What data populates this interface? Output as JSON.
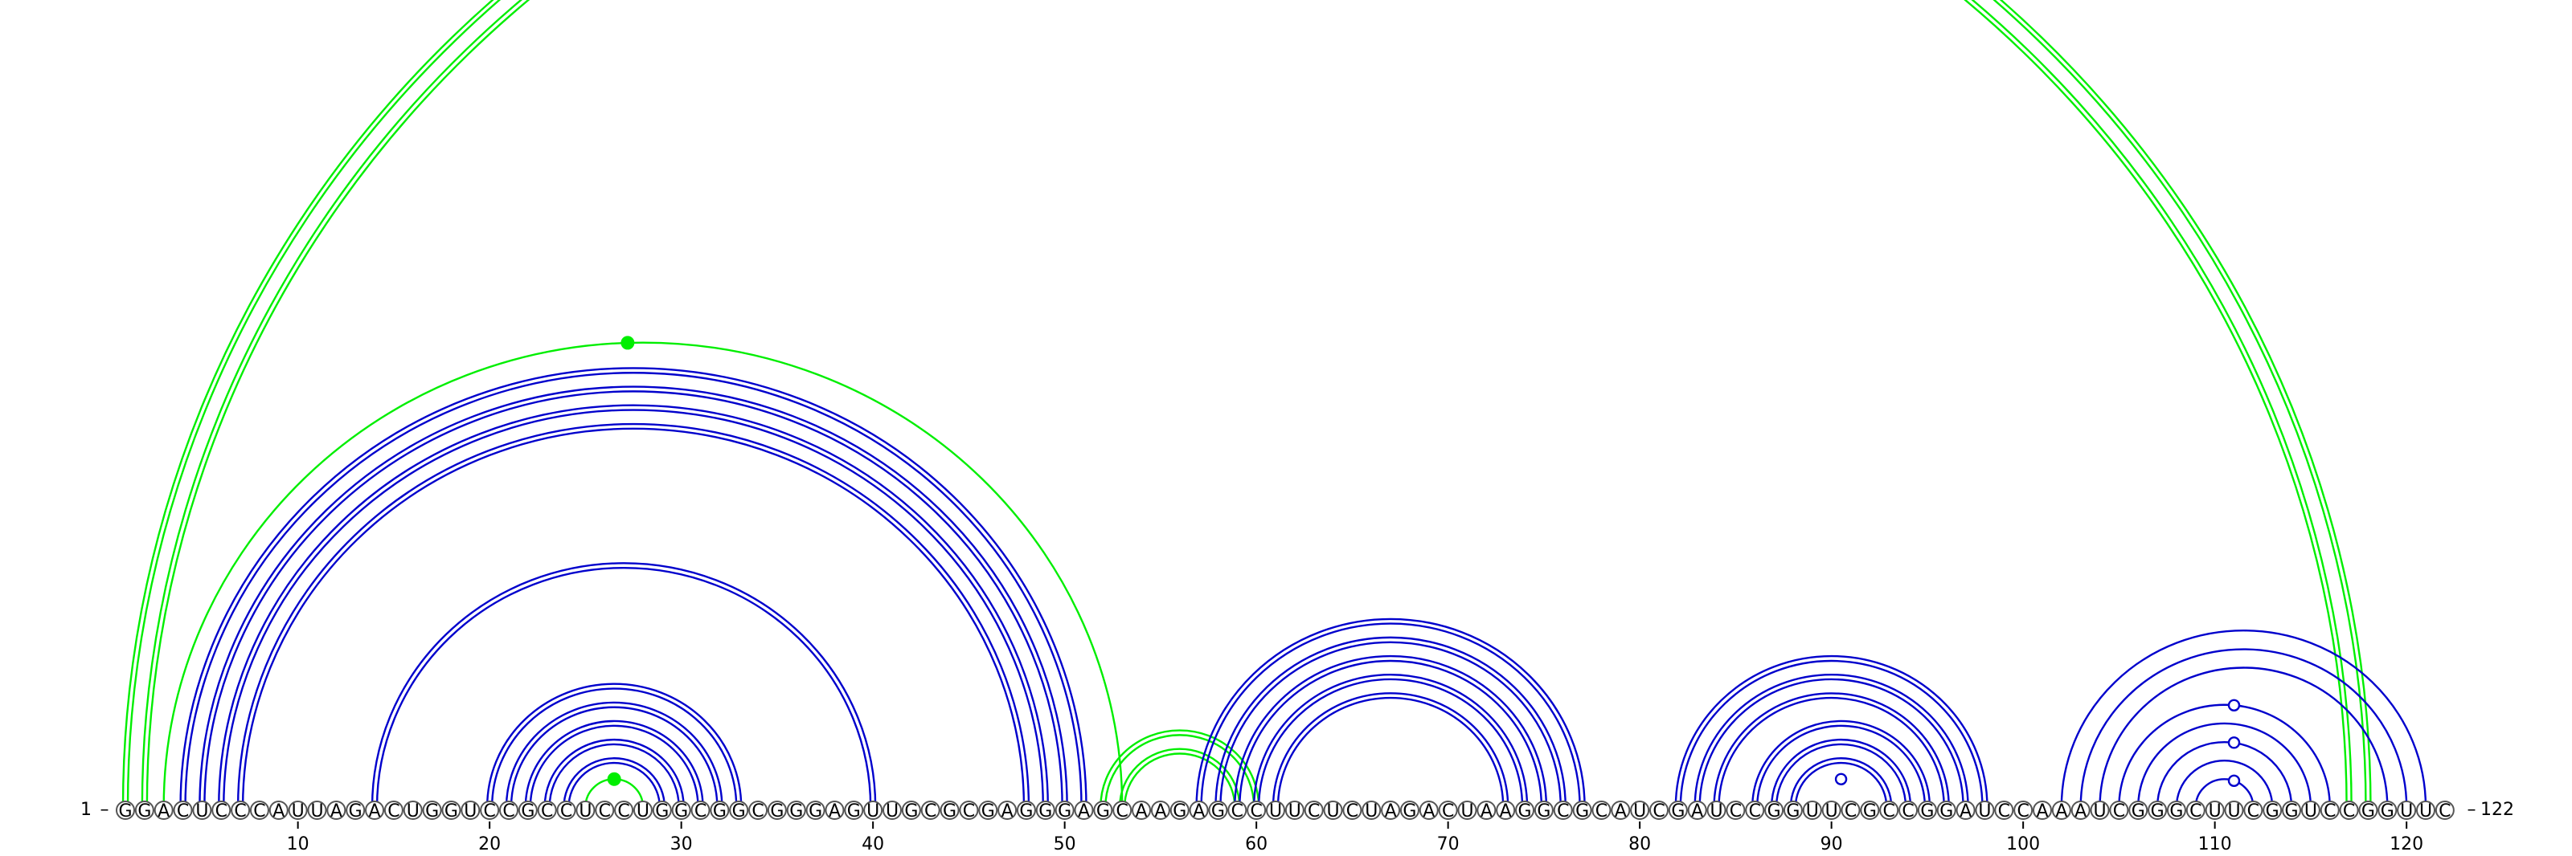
{
  "sequence": "GGACUCCCAUUAGACUGGUCCGCCUCCUGGCGGCGGGAGUUGCGCGAGGGAGCAAGAGCCUUCUCUAGACUAAGGCGCAUCGAUCCGGUUCGCCGGAUCCAAAUCGGGCUUCGGUCCGGUUC",
  "length": 122,
  "start_label": "1",
  "end_label": "122",
  "tick_labels": [
    "10",
    "20",
    "30",
    "40",
    "50",
    "60",
    "70",
    "80",
    "90",
    "100",
    "110",
    "120"
  ],
  "colors": {
    "blue_arc": "#0000cc",
    "green_arc": "#00ee00",
    "marker_open": "#0000cc",
    "marker_filled": "#00ee00"
  },
  "arc_groups": [
    {
      "color": "green",
      "style": "double",
      "pairs": [
        [
          1,
          118
        ],
        [
          2,
          117
        ]
      ]
    },
    {
      "color": "green",
      "style": "single",
      "pairs": [
        [
          3,
          53
        ]
      ]
    },
    {
      "color": "blue",
      "style": "double",
      "pairs": [
        [
          4,
          51
        ],
        [
          5,
          50
        ],
        [
          6,
          49
        ],
        [
          7,
          48
        ]
      ]
    },
    {
      "color": "blue",
      "style": "double",
      "pairs": [
        [
          14,
          40
        ]
      ]
    },
    {
      "color": "blue",
      "style": "double",
      "pairs": [
        [
          20,
          33
        ],
        [
          21,
          32
        ],
        [
          22,
          31
        ],
        [
          23,
          30
        ],
        [
          24,
          29
        ]
      ]
    },
    {
      "color": "green",
      "style": "single",
      "pairs": [
        [
          25,
          28
        ]
      ]
    },
    {
      "color": "green",
      "style": "double",
      "pairs": [
        [
          52,
          60
        ],
        [
          53,
          59
        ]
      ]
    },
    {
      "color": "blue",
      "style": "double",
      "pairs": [
        [
          57,
          77
        ],
        [
          58,
          76
        ],
        [
          59,
          75
        ],
        [
          60,
          74
        ]
      ]
    },
    {
      "color": "blue",
      "style": "double",
      "pairs": [
        [
          61,
          73
        ]
      ]
    },
    {
      "color": "blue",
      "style": "double",
      "pairs": [
        [
          82,
          98
        ],
        [
          83,
          97
        ],
        [
          84,
          96
        ],
        [
          86,
          95
        ],
        [
          87,
          94
        ],
        [
          88,
          93
        ]
      ]
    },
    {
      "color": "blue",
      "style": "single",
      "pairs": [
        [
          102,
          121
        ],
        [
          103,
          120
        ],
        [
          104,
          119
        ],
        [
          105,
          116
        ],
        [
          106,
          115
        ],
        [
          107,
          114
        ],
        [
          108,
          113
        ],
        [
          109,
          112
        ]
      ]
    }
  ],
  "markers": [
    {
      "at": 27.2,
      "pair": [
        3,
        53
      ],
      "type": "filled"
    },
    {
      "at": 26.5,
      "pair": [
        25,
        28
      ],
      "type": "filled"
    },
    {
      "at": 90.5,
      "pair": [
        89,
        92
      ],
      "type": "open"
    },
    {
      "at": 111,
      "pair": [
        105,
        116
      ],
      "type": "open"
    },
    {
      "at": 111,
      "pair": [
        107,
        114
      ],
      "type": "open"
    },
    {
      "at": 111,
      "pair": [
        109,
        112
      ],
      "type": "open"
    }
  ]
}
